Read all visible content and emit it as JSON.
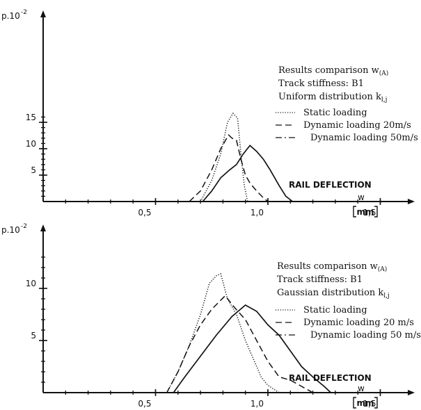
{
  "chart_data": [
    {
      "type": "line",
      "ylabel": "p.10",
      "ylabel_exp": "-2",
      "xlabel": "RAIL  DEFLECTION",
      "xlabel_symbol": "w",
      "xunit": "mm",
      "xlim": [
        0.0,
        1.6
      ],
      "ylim": [
        0,
        17
      ],
      "xticks": [
        {
          "v": 0.5,
          "label": "0,5"
        },
        {
          "v": 1.0,
          "label": "1,0"
        },
        {
          "v": 1.5,
          "label": "1,5"
        }
      ],
      "yticks": [
        {
          "v": 5,
          "label": "5"
        },
        {
          "v": 10,
          "label": "10"
        },
        {
          "v": 15,
          "label": "15"
        }
      ],
      "legend": {
        "title": "Results comparison w",
        "title_sub": "(A)",
        "line2": "Track stiffness: B1",
        "line3": "Uniform distribution k",
        "line3_sub": "l,j"
      },
      "series": [
        {
          "name": "Static loading",
          "style": "dotted",
          "x": [
            0.7,
            0.75,
            0.79,
            0.82,
            0.845,
            0.865,
            0.88,
            0.895,
            0.91
          ],
          "y": [
            0,
            4,
            9,
            15,
            16.7,
            15.8,
            9,
            3,
            0
          ]
        },
        {
          "name": "Dynamic loading 20m/s",
          "style": "dashed",
          "x": [
            0.65,
            0.7,
            0.75,
            0.79,
            0.825,
            0.84,
            0.86,
            0.88,
            0.9,
            0.92,
            0.95,
            0.98,
            1.0
          ],
          "y": [
            0,
            2,
            6,
            10,
            12.6,
            12.0,
            11.6,
            8,
            5,
            3.5,
            2,
            0.7,
            0
          ]
        },
        {
          "name": "Dynamic loading 50m/s",
          "style": "solid",
          "x": [
            0.71,
            0.75,
            0.79,
            0.83,
            0.86,
            0.89,
            0.92,
            0.95,
            0.98,
            1.01,
            1.05,
            1.08,
            1.11
          ],
          "y": [
            0,
            2,
            4.5,
            6,
            7,
            9,
            10.6,
            9.5,
            8,
            6,
            3,
            1,
            0
          ]
        }
      ]
    },
    {
      "type": "line",
      "ylabel": "p.10",
      "ylabel_exp": "-2",
      "xlabel": "RAIL  DEFLECTION",
      "xlabel_symbol": "w",
      "xunit": "mm",
      "xlim": [
        0.0,
        1.6
      ],
      "ylim": [
        0,
        13.5
      ],
      "xticks": [
        {
          "v": 0.5,
          "label": "0,5"
        },
        {
          "v": 1.0,
          "label": "1,0"
        },
        {
          "v": 1.5,
          "label": "1,5"
        }
      ],
      "yticks": [
        {
          "v": 5,
          "label": "5"
        },
        {
          "v": 10,
          "label": "10"
        }
      ],
      "legend": {
        "title": "Results comparison w",
        "title_sub": "(A)",
        "line2": "Track stiffness: B1",
        "line3": "Gaussian distribution k",
        "line3_sub": "l,j"
      },
      "series": [
        {
          "name": "Static loading",
          "style": "dotted",
          "x": [
            0.55,
            0.6,
            0.65,
            0.7,
            0.74,
            0.77,
            0.79,
            0.82,
            0.86,
            0.9,
            0.94,
            0.97,
            1.0,
            1.05
          ],
          "y": [
            0,
            2,
            4.5,
            7.5,
            10.5,
            11.2,
            11.4,
            9,
            7.5,
            5,
            3,
            1.5,
            0.7,
            0
          ]
        },
        {
          "name": "Dynamic loading 20 m/s",
          "style": "dashed",
          "x": [
            0.55,
            0.6,
            0.65,
            0.7,
            0.75,
            0.81,
            0.85,
            0.9,
            0.95,
            1.0,
            1.05,
            1.1,
            1.15,
            1.2
          ],
          "y": [
            0,
            2,
            4.5,
            6.5,
            8,
            9.3,
            8.2,
            7,
            5,
            3,
            1.5,
            1.2,
            0.6,
            0
          ]
        },
        {
          "name": "Dynamic loading 50 m/s",
          "style": "solid",
          "x": [
            0.58,
            0.63,
            0.7,
            0.77,
            0.84,
            0.9,
            0.95,
            1.0,
            1.05,
            1.1,
            1.15,
            1.2,
            1.25,
            1.28
          ],
          "y": [
            0,
            1.5,
            3.5,
            5.5,
            7.3,
            8.4,
            7.8,
            6.5,
            5.5,
            4,
            2.5,
            1.5,
            0.6,
            0
          ]
        }
      ]
    }
  ]
}
